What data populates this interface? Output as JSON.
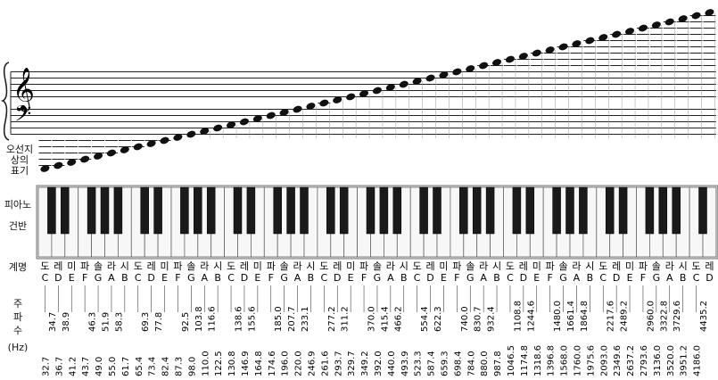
{
  "labels": {
    "staff": [
      "오선지",
      "상의",
      "표기"
    ],
    "keys": [
      "피아노",
      "건반"
    ],
    "names": "계명",
    "freq": [
      "주",
      "파",
      "수"
    ],
    "unit": "(Hz)"
  },
  "clefs": {
    "treble": "𝄞",
    "bass": "𝄢"
  },
  "notes": [
    {
      "korean": "도",
      "letter": "C",
      "freq": "32.7"
    },
    {
      "korean": "레",
      "letter": "D",
      "freq": "36.7"
    },
    {
      "korean": "미",
      "letter": "E",
      "freq": "41.2"
    },
    {
      "korean": "파",
      "letter": "F",
      "freq": "43.7"
    },
    {
      "korean": "솔",
      "letter": "G",
      "freq": "49.0"
    },
    {
      "korean": "라",
      "letter": "A",
      "freq": "55.0"
    },
    {
      "korean": "시",
      "letter": "B",
      "freq": "61.7"
    },
    {
      "korean": "도",
      "letter": "C",
      "freq": "65.4"
    },
    {
      "korean": "레",
      "letter": "D",
      "freq": "73.4"
    },
    {
      "korean": "미",
      "letter": "E",
      "freq": "82.4"
    },
    {
      "korean": "파",
      "letter": "F",
      "freq": "87.3"
    },
    {
      "korean": "솔",
      "letter": "G",
      "freq": "98.0"
    },
    {
      "korean": "라",
      "letter": "A",
      "freq": "110.0"
    },
    {
      "korean": "시",
      "letter": "B",
      "freq": "122.5"
    },
    {
      "korean": "도",
      "letter": "C",
      "freq": "130.8"
    },
    {
      "korean": "레",
      "letter": "D",
      "freq": "146.9"
    },
    {
      "korean": "미",
      "letter": "E",
      "freq": "164.8"
    },
    {
      "korean": "파",
      "letter": "F",
      "freq": "174.6"
    },
    {
      "korean": "솔",
      "letter": "G",
      "freq": "196.0"
    },
    {
      "korean": "라",
      "letter": "A",
      "freq": "220.0"
    },
    {
      "korean": "시",
      "letter": "B",
      "freq": "246.9"
    },
    {
      "korean": "도",
      "letter": "C",
      "freq": "261.6"
    },
    {
      "korean": "레",
      "letter": "D",
      "freq": "293.7"
    },
    {
      "korean": "미",
      "letter": "E",
      "freq": "329.7"
    },
    {
      "korean": "파",
      "letter": "F",
      "freq": "349.2"
    },
    {
      "korean": "솔",
      "letter": "G",
      "freq": "392.0"
    },
    {
      "korean": "라",
      "letter": "A",
      "freq": "440.0"
    },
    {
      "korean": "시",
      "letter": "B",
      "freq": "493.9"
    },
    {
      "korean": "도",
      "letter": "C",
      "freq": "523.3"
    },
    {
      "korean": "레",
      "letter": "D",
      "freq": "587.4"
    },
    {
      "korean": "미",
      "letter": "E",
      "freq": "659.3"
    },
    {
      "korean": "파",
      "letter": "F",
      "freq": "698.4"
    },
    {
      "korean": "솔",
      "letter": "G",
      "freq": "784.0"
    },
    {
      "korean": "라",
      "letter": "A",
      "freq": "880.0"
    },
    {
      "korean": "시",
      "letter": "B",
      "freq": "987.8"
    },
    {
      "korean": "도",
      "letter": "C",
      "freq": "1046.5"
    },
    {
      "korean": "레",
      "letter": "D",
      "freq": "1174.8"
    },
    {
      "korean": "미",
      "letter": "E",
      "freq": "1318.6"
    },
    {
      "korean": "파",
      "letter": "F",
      "freq": "1396.8"
    },
    {
      "korean": "솔",
      "letter": "G",
      "freq": "1568.0"
    },
    {
      "korean": "라",
      "letter": "A",
      "freq": "1760.0"
    },
    {
      "korean": "시",
      "letter": "B",
      "freq": "1975.6"
    },
    {
      "korean": "도",
      "letter": "C",
      "freq": "2093.0"
    },
    {
      "korean": "레",
      "letter": "D",
      "freq": "2349.6"
    },
    {
      "korean": "미",
      "letter": "E",
      "freq": "2637.2"
    },
    {
      "korean": "파",
      "letter": "F",
      "freq": "2793.6"
    },
    {
      "korean": "솔",
      "letter": "G",
      "freq": "3136.0"
    },
    {
      "korean": "라",
      "letter": "A",
      "freq": "3520.0"
    },
    {
      "korean": "시",
      "letter": "B",
      "freq": "3951.2"
    },
    {
      "korean": "도",
      "letter": "C",
      "freq": "4186.0"
    },
    {
      "korean": "레",
      "letter": "D",
      "freq": ""
    }
  ],
  "sharps": [
    "34.7",
    "38.9",
    "46.3",
    "51.9",
    "58.3",
    "69.3",
    "77.8",
    "92.5",
    "103.8",
    "116.6",
    "138.6",
    "155.6",
    "185.0",
    "207.7",
    "233.1",
    "277.2",
    "311.2",
    "370.0",
    "415.4",
    "466.2",
    "554.4",
    "622.3",
    "740.0",
    "830.7",
    "932.4",
    "1108.8",
    "1244.6",
    "1480.0",
    "1661.4",
    "1864.8",
    "2217.6",
    "2489.2",
    "2960.0",
    "3322.8",
    "3729.6",
    "4435.2"
  ]
}
